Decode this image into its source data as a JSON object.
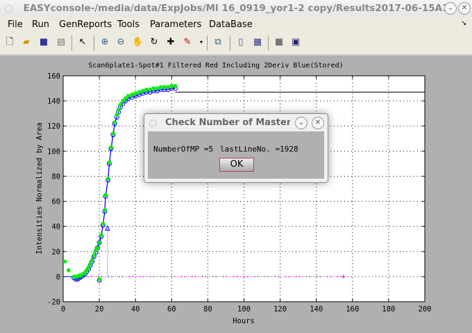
{
  "window": {
    "title": "EASYconsole-/media/data/ExpJobs/MI 16_0919_yor1-2 copy/Results2017-06-15A1"
  },
  "menu": [
    "File",
    "Run",
    "GenReports",
    "Tools",
    "Parameters",
    "DataBase"
  ],
  "toolbar_icons": [
    "new-file-icon",
    "open-folder-icon",
    "save-icon",
    "print-icon",
    "pointer-icon",
    "zoom-in-icon",
    "zoom-out-icon",
    "pan-hand-icon",
    "rotate-icon",
    "data-cursor-icon",
    "brush-icon",
    "link-icon",
    "colorbar-icon",
    "legend-icon",
    "hide-plot-icon",
    "show-plot-icon"
  ],
  "dialog": {
    "title": "Check Number of Master Plates",
    "message_a": "NumberOfMP =5",
    "message_b": "lastLineNo. =1928",
    "ok_label": "OK"
  },
  "chart_data": {
    "type": "scatter",
    "title": "Scan6plate1-Spot#1 Filtered Red Including 2Deriv Blue(Stored)",
    "xlabel": "Hours",
    "ylabel": "Intensities Normalized by Area",
    "xlim": [
      0,
      200
    ],
    "ylim": [
      -20,
      160
    ],
    "xticks": [
      0,
      20,
      40,
      60,
      80,
      100,
      120,
      140,
      160,
      180,
      200
    ],
    "yticks": [
      -20,
      0,
      20,
      40,
      60,
      80,
      100,
      120,
      140,
      160
    ],
    "grid": "dotted",
    "colors": {
      "circles": "#0000ff",
      "stars": "#00ee00",
      "fit": "#0000ff",
      "plateau": "#000000",
      "baseline": "#ff00ff"
    },
    "x": [
      6,
      7,
      8,
      9,
      10,
      11,
      12,
      13,
      14,
      15,
      16,
      17,
      18,
      19,
      20,
      21,
      22,
      23,
      23.4,
      24.8,
      25.5,
      26.5,
      27.6,
      28.5,
      29.7,
      30.6,
      31.6,
      33,
      34.5,
      36,
      38,
      40,
      42,
      44,
      46,
      48,
      50,
      52,
      54,
      56,
      58,
      60,
      62
    ],
    "circles": [
      -1,
      -2,
      -2,
      -1,
      0,
      1,
      2,
      4,
      6,
      9,
      12,
      16,
      19,
      23,
      27,
      32,
      41,
      52,
      64,
      77,
      90,
      102,
      113,
      122,
      127,
      131,
      135,
      138,
      140,
      142,
      143,
      144,
      145,
      146,
      147,
      147,
      148,
      148,
      149,
      149,
      149,
      150,
      150
    ],
    "stars": [
      0,
      0,
      0,
      1,
      1,
      2,
      3,
      5,
      7,
      10,
      13,
      17,
      21,
      23,
      27,
      33,
      42,
      53,
      65,
      78,
      91,
      103,
      114,
      123,
      129,
      133,
      137,
      140,
      142,
      144,
      145,
      146,
      147,
      148,
      149,
      149,
      150,
      150,
      151,
      151,
      151,
      152,
      152
    ],
    "extra_stars": [
      [
        1,
        12
      ],
      [
        3,
        5
      ],
      [
        20,
        -2
      ]
    ],
    "extra_circles": [
      [
        20,
        -3
      ]
    ],
    "inflection": [
      24.5,
      38
    ],
    "plateau_line": {
      "from": 62,
      "to": 200,
      "y": 147
    },
    "baseline_line": {
      "from": 0,
      "to": 155,
      "y": 0
    }
  }
}
